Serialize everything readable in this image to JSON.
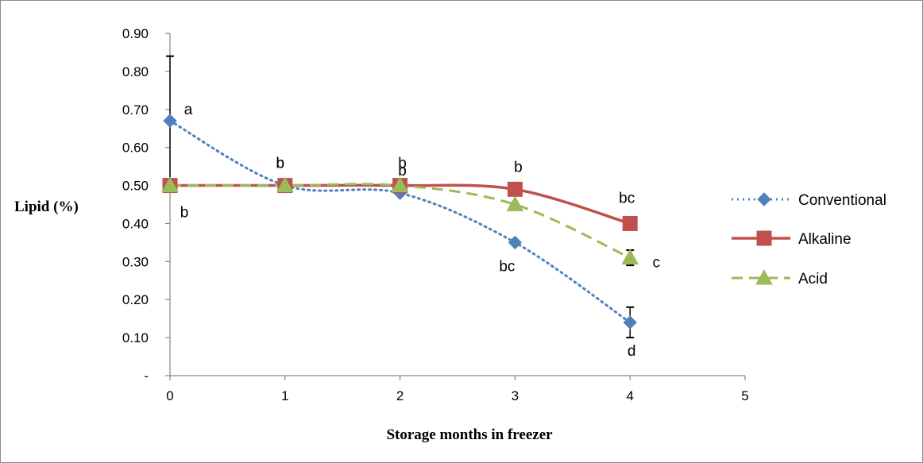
{
  "chart_data": {
    "type": "line",
    "xlabel": "Storage months in freezer",
    "ylabel": "Lipid (%)",
    "xlim": [
      0,
      5
    ],
    "ylim": [
      0,
      0.9
    ],
    "x_ticks": [
      "0",
      "1",
      "2",
      "3",
      "4",
      "5"
    ],
    "y_ticks": [
      "-",
      "0.10",
      "0.20",
      "0.30",
      "0.40",
      "0.50",
      "0.60",
      "0.70",
      "0.80",
      "0.90"
    ],
    "grid": false,
    "legend_position": "right",
    "series": [
      {
        "name": "Conventional",
        "color": "#4f81bd",
        "line_style": "dotted",
        "marker": "diamond",
        "x": [
          0,
          1,
          2,
          3,
          4
        ],
        "values": [
          0.67,
          0.5,
          0.48,
          0.35,
          0.14
        ],
        "error": [
          0.17,
          0,
          0,
          0,
          0.04
        ],
        "letters": [
          "a",
          "b",
          "b",
          "bc",
          "d"
        ]
      },
      {
        "name": "Alkaline",
        "color": "#c0504d",
        "line_style": "solid",
        "marker": "square",
        "x": [
          0,
          1,
          2,
          3,
          4
        ],
        "values": [
          0.5,
          0.5,
          0.5,
          0.49,
          0.4
        ],
        "error": [
          0,
          0,
          0,
          0,
          0
        ],
        "letters": [
          "b",
          "b",
          "b",
          "b",
          "bc"
        ]
      },
      {
        "name": "Acid",
        "color": "#9bbb59",
        "line_style": "dashed",
        "marker": "triangle",
        "x": [
          0,
          1,
          2,
          3,
          4
        ],
        "values": [
          0.5,
          0.5,
          0.5,
          0.45,
          0.31
        ],
        "error": [
          0,
          0,
          0,
          0,
          0.02
        ],
        "letters": [
          "",
          "",
          "",
          "",
          "c"
        ]
      }
    ]
  }
}
